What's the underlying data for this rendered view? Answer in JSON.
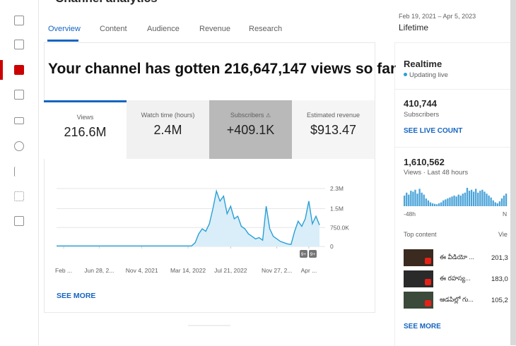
{
  "header": {
    "title": "Channel analytics",
    "date_range": "Feb 19, 2021 – Apr 5, 2023",
    "period": "Lifetime"
  },
  "tabs": [
    "Overview",
    "Content",
    "Audience",
    "Revenue",
    "Research"
  ],
  "headline": "Your channel has gotten 216,647,147 views so far",
  "metrics": [
    {
      "label": "Views",
      "value": "216.6M"
    },
    {
      "label": "Watch time (hours)",
      "value": "2.4M"
    },
    {
      "label": "Subscribers",
      "value": "+409.1K"
    },
    {
      "label": "Estimated revenue",
      "value": "$913.47"
    }
  ],
  "chart": {
    "type": "line",
    "color": "#2a9fd6",
    "values": [
      20000,
      20000,
      20000,
      20000,
      20000,
      20000,
      20000,
      20000,
      20000,
      20000,
      20000,
      20000,
      20000,
      20000,
      20000,
      20000,
      20000,
      20000,
      20000,
      20000,
      20000,
      20000,
      20000,
      20000,
      20000,
      20000,
      20000,
      20000,
      20000,
      20000,
      20000,
      20000,
      20000,
      20000,
      20000,
      20000,
      20000,
      20000,
      20000,
      150000,
      500000,
      700000,
      600000,
      900000,
      1500000,
      2200000,
      1800000,
      2000000,
      1300000,
      1600000,
      1100000,
      1200000,
      800000,
      700000,
      500000,
      400000,
      300000,
      350000,
      250000,
      1600000,
      700000,
      400000,
      300000,
      200000,
      150000,
      100000,
      80000,
      600000,
      1000000,
      800000,
      1100000,
      1800000,
      900000,
      1200000,
      850000
    ],
    "ylim": [
      0,
      2300000
    ],
    "yticks": [
      0,
      {
        "value": 750000,
        "label": "750.0K"
      },
      {
        "value": 1500000,
        "label": "1.5M"
      },
      {
        "value": 2300000,
        "label": "2.3M"
      }
    ],
    "xlim": [
      0,
      74
    ],
    "xticks": [
      {
        "value": 2,
        "label": "Feb ..."
      },
      {
        "value": 12,
        "label": "Jun 28, 2..."
      },
      {
        "value": 24,
        "label": "Nov 4, 2021"
      },
      {
        "value": 37,
        "label": "Mar 14, 2022"
      },
      {
        "value": 49,
        "label": "Jul 21, 2022"
      },
      {
        "value": 62,
        "label": "Nov 27, 2..."
      },
      {
        "value": 71,
        "label": "Apr ..."
      }
    ],
    "annotations": [
      "9+",
      "9+"
    ]
  },
  "see_more": "SEE MORE",
  "realtime": {
    "title": "Realtime",
    "status": "Updating live",
    "subscribers": "410,744",
    "subscribers_label": "Subscribers",
    "live_count": "SEE LIVE COUNT",
    "views": "1,610,562",
    "views_label": "Views · Last 48 hours",
    "bars": [
      55,
      70,
      60,
      80,
      75,
      85,
      65,
      90,
      70,
      60,
      40,
      30,
      20,
      15,
      12,
      10,
      15,
      20,
      30,
      35,
      40,
      45,
      50,
      55,
      50,
      60,
      55,
      65,
      70,
      95,
      80,
      85,
      75,
      90,
      70,
      80,
      85,
      75,
      65,
      55,
      45,
      30,
      20,
      15,
      25,
      40,
      55,
      65
    ],
    "axis_start": "-48h",
    "axis_end": "N",
    "top_content": "Top content",
    "views_col": "Vie",
    "items": [
      {
        "title": "ఈ వీడియో ...",
        "views": "201,3"
      },
      {
        "title": "ఈ రహస్య...",
        "views": "183,0"
      },
      {
        "title": "ఆడపిల్లో గు...",
        "views": "105,2"
      }
    ],
    "see_more": "SEE MORE"
  }
}
